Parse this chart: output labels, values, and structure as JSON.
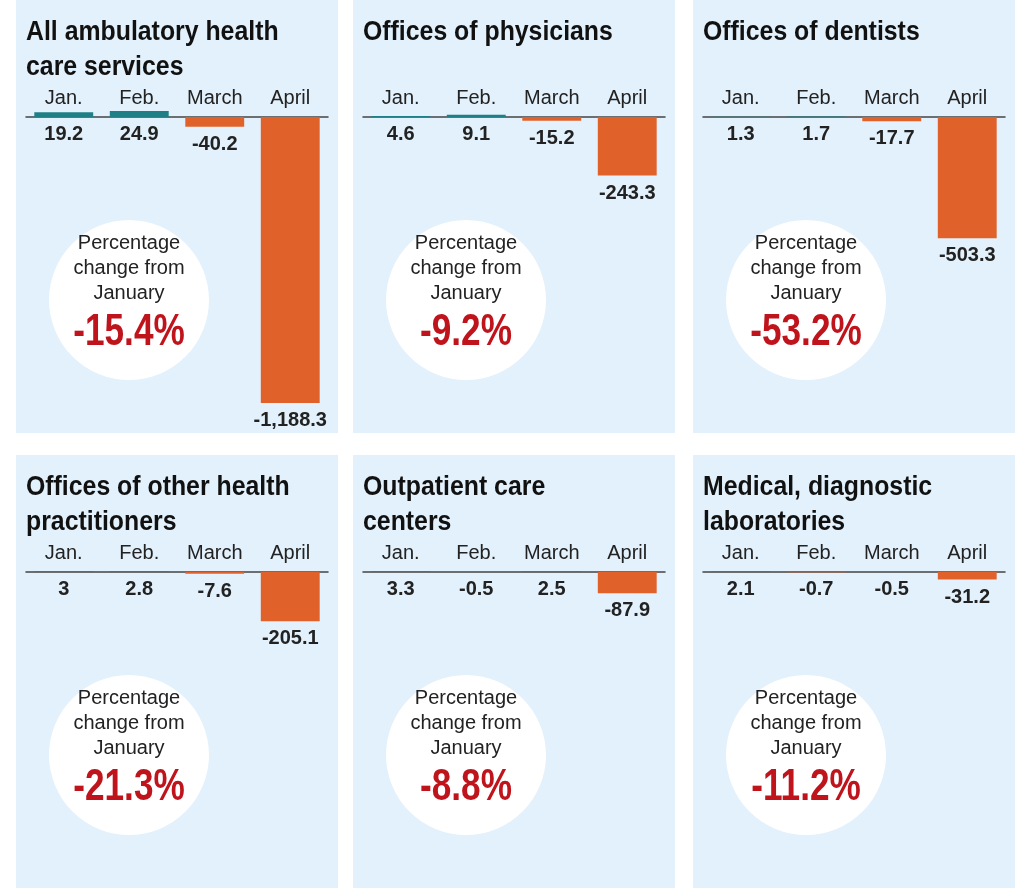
{
  "chart_data": [
    {
      "type": "bar",
      "title": "All ambulatory health care services",
      "categories": [
        "Jan.",
        "Feb.",
        "March",
        "April"
      ],
      "values": [
        19.2,
        24.9,
        -40.2,
        -1188.3
      ],
      "colors": [
        "#1f7f86",
        "#1f7f86",
        "#e0622a",
        "#e0622a"
      ],
      "value_labels": [
        "19.2",
        "24.9",
        "-40.2",
        "-1,188.3"
      ],
      "annotations": [
        "Percentage change from January",
        "-15.4%"
      ]
    },
    {
      "type": "bar",
      "title": "Offices of physicians",
      "categories": [
        "Jan.",
        "Feb.",
        "March",
        "April"
      ],
      "values": [
        4.6,
        9.1,
        -15.2,
        -243.3
      ],
      "colors": [
        "#1f7f86",
        "#1f7f86",
        "#e0622a",
        "#e0622a"
      ],
      "data_labels": true,
      "annotations": [
        "Percentage change from January",
        "-9.2%"
      ]
    },
    {
      "type": "bar",
      "title": "Offices of dentists",
      "categories": [
        "Jan.",
        "Feb.",
        "March",
        "April"
      ],
      "values": [
        1.3,
        1.7,
        -17.7,
        -503.3
      ],
      "colors": [
        "#1f7f86",
        "#1f7f86",
        "#e0622a",
        "#e0622a"
      ],
      "data_labels": true,
      "annotations": [
        "Percentage change from January",
        "-53.2%"
      ]
    },
    {
      "type": "bar",
      "title": "Offices of other health practitioners",
      "categories": [
        "Jan.",
        "Feb.",
        "March",
        "April"
      ],
      "values": [
        3,
        2.8,
        -7.6,
        -205.1
      ],
      "colors": [
        "#1f7f86",
        "#1f7f86",
        "#e0622a",
        "#e0622a"
      ],
      "data_labels": true,
      "annotations": [
        "Percentage change from January",
        "-21.3%"
      ]
    },
    {
      "type": "bar",
      "title": "Outpatient care centers",
      "categories": [
        "Jan.",
        "Feb.",
        "March",
        "April"
      ],
      "values": [
        3.3,
        -0.5,
        2.5,
        -87.9
      ],
      "colors": [
        "#1f7f86",
        "#e0622a",
        "#1f7f86",
        "#e0622a"
      ],
      "data_labels": true,
      "annotations": [
        "Percentage change from January",
        "-8.8%"
      ]
    },
    {
      "type": "bar",
      "title": "Medical, diagnostic laboratories",
      "categories": [
        "Jan.",
        "Feb.",
        "March",
        "April"
      ],
      "values": [
        2.1,
        -0.7,
        -0.5,
        -31.2
      ],
      "colors": [
        "#1f7f86",
        "#e0622a",
        "#e0622a",
        "#e0622a"
      ],
      "data_labels": true,
      "annotations": [
        "Percentage change from January",
        "-11.2%"
      ]
    }
  ]
}
